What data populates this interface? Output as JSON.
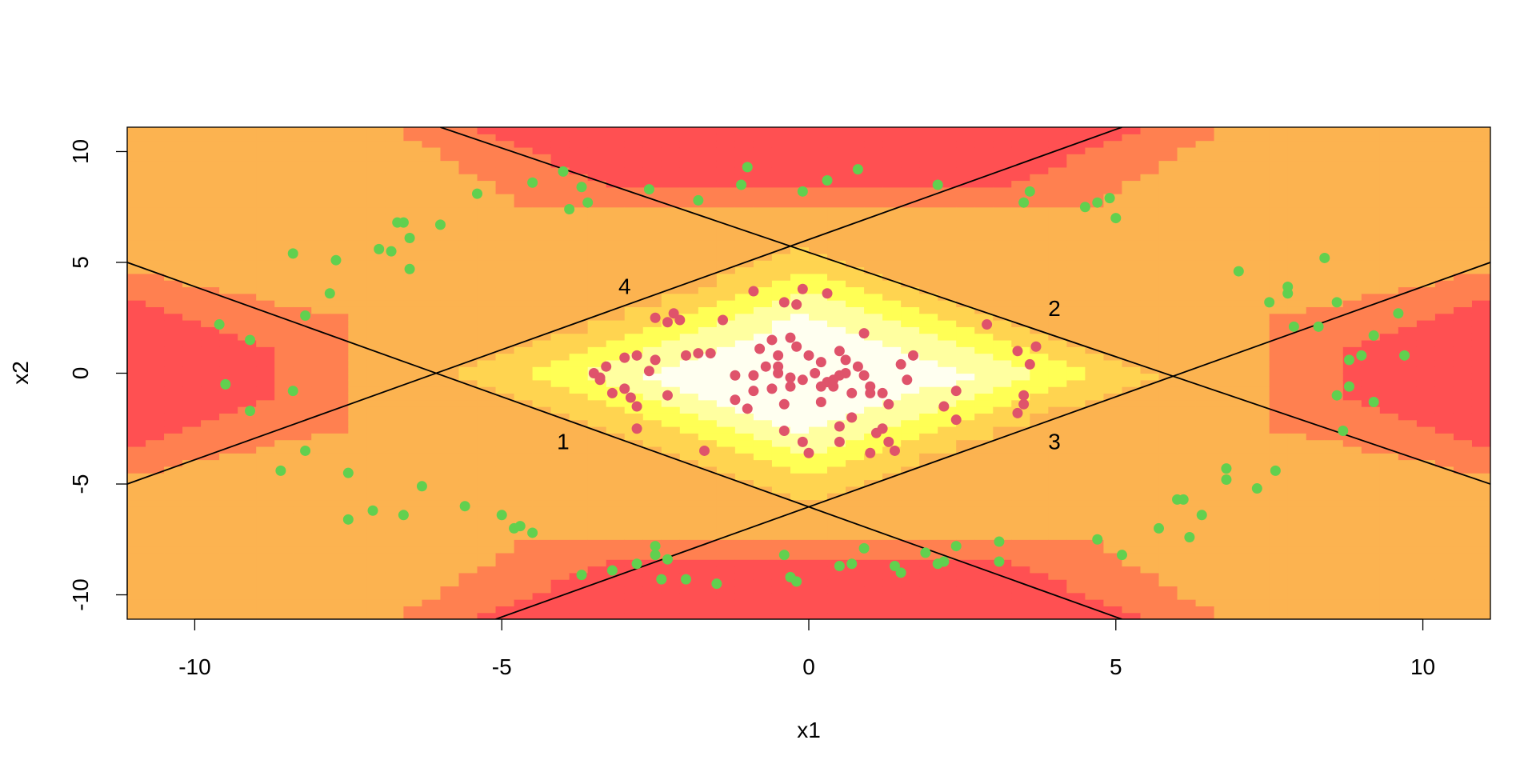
{
  "chart_data": {
    "type": "scatter",
    "title": "",
    "xlabel": "x1",
    "ylabel": "x2",
    "xlim": [
      -11.1,
      11.1
    ],
    "ylim": [
      -11.1,
      11.1
    ],
    "x_ticks": [
      -10,
      -5,
      0,
      5,
      10
    ],
    "y_ticks": [
      -10,
      -5,
      0,
      5,
      10
    ],
    "x_tick_labels": [
      "-10",
      "-5",
      "0",
      "5",
      "10"
    ],
    "y_tick_labels": [
      "-10",
      "-5",
      "0",
      "5",
      "10"
    ],
    "grid": false,
    "background": {
      "type": "heatmap",
      "description_colors": [
        "#FFFFF0",
        "#FFFFA0",
        "#FFFF55",
        "#FFD450",
        "#FCB350",
        "#FF8050",
        "#FF5052"
      ]
    },
    "lines": [
      {
        "label": "1",
        "x": [
          -11.1,
          5.1
        ],
        "y": [
          5.0,
          -11.1
        ],
        "label_pos": [
          -4.0,
          -3.1
        ]
      },
      {
        "label": "2",
        "x": [
          -6.0,
          11.1
        ],
        "y": [
          11.1,
          -5.0
        ],
        "label_pos": [
          4.0,
          2.9
        ]
      },
      {
        "label": "3",
        "x": [
          -5.1,
          11.1
        ],
        "y": [
          -11.1,
          5.0
        ],
        "label_pos": [
          4.0,
          -3.1
        ]
      },
      {
        "label": "4",
        "x": [
          -11.1,
          5.1
        ],
        "y": [
          -5.0,
          11.1
        ],
        "label_pos": [
          -3.0,
          3.9
        ]
      }
    ],
    "series": [
      {
        "color": "#DF536B",
        "points": [
          [
            -0.1,
            3.8
          ],
          [
            -1.4,
            2.4
          ],
          [
            -0.9,
            3.7
          ],
          [
            0.3,
            3.6
          ],
          [
            -0.2,
            3.1
          ],
          [
            -0.4,
            3.2
          ],
          [
            -2.5,
            2.5
          ],
          [
            -2.1,
            2.4
          ],
          [
            -2.2,
            2.7
          ],
          [
            -2.3,
            2.3
          ],
          [
            0.9,
            1.8
          ],
          [
            2.9,
            2.2
          ],
          [
            3.4,
            1.0
          ],
          [
            3.7,
            1.2
          ],
          [
            3.6,
            0.4
          ],
          [
            1.7,
            0.8
          ],
          [
            1.5,
            0.4
          ],
          [
            1.6,
            -0.3
          ],
          [
            0.5,
            1.0
          ],
          [
            0.8,
            0.3
          ],
          [
            -0.3,
            1.6
          ],
          [
            -0.6,
            1.5
          ],
          [
            -0.8,
            1.1
          ],
          [
            -0.2,
            1.2
          ],
          [
            -0.5,
            0.8
          ],
          [
            0.0,
            0.8
          ],
          [
            0.5,
            -0.1
          ],
          [
            -1.6,
            0.9
          ],
          [
            -1.8,
            0.9
          ],
          [
            -2.0,
            0.8
          ],
          [
            -2.5,
            0.6
          ],
          [
            -2.8,
            0.8
          ],
          [
            -3.0,
            0.7
          ],
          [
            -3.3,
            0.3
          ],
          [
            -3.4,
            -0.2
          ],
          [
            -3.5,
            0.0
          ],
          [
            -3.4,
            -0.3
          ],
          [
            -3.2,
            -0.9
          ],
          [
            -2.6,
            0.1
          ],
          [
            -1.2,
            -0.1
          ],
          [
            -0.9,
            -0.1
          ],
          [
            -0.7,
            0.3
          ],
          [
            -0.5,
            0.0
          ],
          [
            -0.3,
            -0.2
          ],
          [
            -0.1,
            -0.3
          ],
          [
            0.1,
            0.0
          ],
          [
            0.3,
            -0.4
          ],
          [
            0.4,
            -0.6
          ],
          [
            0.6,
            0.0
          ],
          [
            0.9,
            -0.1
          ],
          [
            1.0,
            -0.6
          ],
          [
            1.2,
            -0.9
          ],
          [
            1.3,
            -1.4
          ],
          [
            1.0,
            -0.9
          ],
          [
            0.7,
            -0.9
          ],
          [
            0.4,
            -0.3
          ],
          [
            0.2,
            -0.6
          ],
          [
            -0.3,
            -0.6
          ],
          [
            -0.6,
            -0.7
          ],
          [
            -0.9,
            -0.8
          ],
          [
            -1.0,
            -1.6
          ],
          [
            -1.2,
            -1.2
          ],
          [
            -0.4,
            -1.4
          ],
          [
            0.2,
            -1.3
          ],
          [
            0.5,
            -2.4
          ],
          [
            0.7,
            -2.0
          ],
          [
            1.1,
            -2.7
          ],
          [
            1.2,
            -2.5
          ],
          [
            1.3,
            -3.1
          ],
          [
            1.4,
            -3.5
          ],
          [
            1.0,
            -3.6
          ],
          [
            0.5,
            -3.1
          ],
          [
            -0.1,
            -3.1
          ],
          [
            0.0,
            -3.6
          ],
          [
            -0.4,
            -2.6
          ],
          [
            -1.7,
            -3.5
          ],
          [
            -2.8,
            -2.5
          ],
          [
            -2.8,
            -1.5
          ],
          [
            -2.9,
            -1.1
          ],
          [
            -3.0,
            -0.7
          ],
          [
            -2.3,
            -1.0
          ],
          [
            2.4,
            -0.8
          ],
          [
            2.2,
            -1.5
          ],
          [
            2.4,
            -2.1
          ],
          [
            3.5,
            -1.4
          ],
          [
            3.5,
            -1.0
          ],
          [
            3.4,
            -1.8
          ],
          [
            -0.5,
            0.3
          ],
          [
            0.2,
            0.5
          ],
          [
            0.6,
            0.6
          ]
        ]
      },
      {
        "color": "#61D04F",
        "points": [
          [
            -1.0,
            9.3
          ],
          [
            0.8,
            9.2
          ],
          [
            -4.0,
            9.1
          ],
          [
            -1.1,
            8.5
          ],
          [
            0.3,
            8.7
          ],
          [
            -0.1,
            8.2
          ],
          [
            2.1,
            8.5
          ],
          [
            -2.6,
            8.3
          ],
          [
            -3.7,
            8.4
          ],
          [
            -4.5,
            8.6
          ],
          [
            -3.9,
            7.4
          ],
          [
            -3.6,
            7.7
          ],
          [
            -1.8,
            7.8
          ],
          [
            3.5,
            7.7
          ],
          [
            3.6,
            8.2
          ],
          [
            4.5,
            7.5
          ],
          [
            4.7,
            7.7
          ],
          [
            4.9,
            7.9
          ],
          [
            5.0,
            7.0
          ],
          [
            -5.4,
            8.1
          ],
          [
            -6.0,
            6.7
          ],
          [
            -6.6,
            6.8
          ],
          [
            -6.7,
            6.8
          ],
          [
            -6.5,
            6.1
          ],
          [
            -7.0,
            5.6
          ],
          [
            -6.8,
            5.5
          ],
          [
            -7.7,
            5.1
          ],
          [
            -8.4,
            5.4
          ],
          [
            -6.5,
            4.7
          ],
          [
            -7.8,
            3.6
          ],
          [
            -8.2,
            2.6
          ],
          [
            -9.6,
            2.2
          ],
          [
            -9.1,
            1.5
          ],
          [
            -9.5,
            -0.5
          ],
          [
            -8.4,
            -0.8
          ],
          [
            -9.1,
            -1.7
          ],
          [
            -8.2,
            -3.5
          ],
          [
            -8.6,
            -4.4
          ],
          [
            -7.5,
            -4.5
          ],
          [
            -6.3,
            -5.1
          ],
          [
            -7.5,
            -6.6
          ],
          [
            -7.1,
            -6.2
          ],
          [
            -6.6,
            -6.4
          ],
          [
            -5.6,
            -6.0
          ],
          [
            -5.0,
            -6.4
          ],
          [
            -4.8,
            -7.0
          ],
          [
            -4.7,
            -6.9
          ],
          [
            -4.5,
            -7.2
          ],
          [
            -3.7,
            -9.1
          ],
          [
            -3.2,
            -8.9
          ],
          [
            -2.8,
            -8.6
          ],
          [
            -2.5,
            -7.8
          ],
          [
            -2.5,
            -8.2
          ],
          [
            -2.3,
            -8.4
          ],
          [
            -2.4,
            -9.3
          ],
          [
            -2.0,
            -9.3
          ],
          [
            -1.5,
            -9.5
          ],
          [
            -0.4,
            -8.2
          ],
          [
            -0.3,
            -9.2
          ],
          [
            -0.2,
            -9.4
          ],
          [
            0.5,
            -8.7
          ],
          [
            0.7,
            -8.6
          ],
          [
            0.9,
            -7.9
          ],
          [
            1.4,
            -8.7
          ],
          [
            1.5,
            -9.0
          ],
          [
            1.9,
            -8.1
          ],
          [
            2.1,
            -8.6
          ],
          [
            2.2,
            -8.5
          ],
          [
            2.4,
            -7.8
          ],
          [
            3.1,
            -7.6
          ],
          [
            3.1,
            -8.5
          ],
          [
            4.7,
            -7.5
          ],
          [
            5.1,
            -8.2
          ],
          [
            5.7,
            -7.0
          ],
          [
            6.0,
            -5.7
          ],
          [
            6.1,
            -5.7
          ],
          [
            6.2,
            -7.4
          ],
          [
            6.4,
            -6.4
          ],
          [
            6.8,
            -4.3
          ],
          [
            6.8,
            -4.8
          ],
          [
            7.3,
            -5.2
          ],
          [
            7.6,
            -4.4
          ],
          [
            8.7,
            -2.6
          ],
          [
            8.6,
            -1.0
          ],
          [
            8.8,
            -0.6
          ],
          [
            9.2,
            -1.3
          ],
          [
            8.8,
            0.6
          ],
          [
            9.0,
            0.8
          ],
          [
            9.7,
            0.8
          ],
          [
            9.2,
            1.7
          ],
          [
            8.3,
            2.1
          ],
          [
            7.9,
            2.1
          ],
          [
            9.6,
            2.7
          ],
          [
            8.6,
            3.2
          ],
          [
            7.8,
            3.6
          ],
          [
            7.8,
            3.9
          ],
          [
            7.5,
            3.2
          ],
          [
            7.0,
            4.6
          ],
          [
            8.4,
            5.2
          ]
        ]
      }
    ]
  }
}
